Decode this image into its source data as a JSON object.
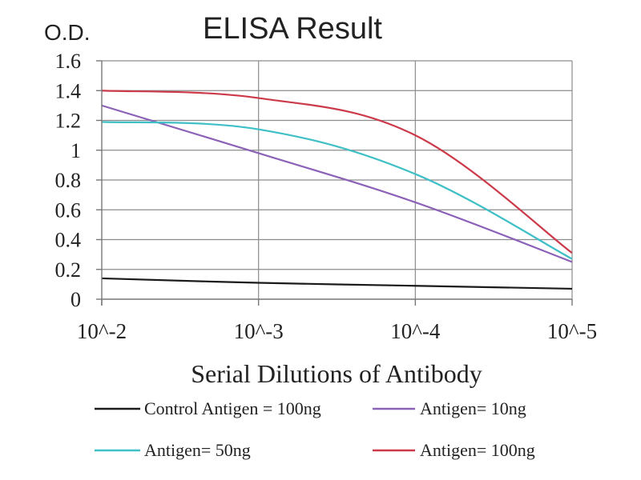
{
  "chart_data": {
    "type": "line",
    "title": "ELISA Result",
    "ylabel": "O.D.",
    "xlabel": "Serial Dilutions of Antibody",
    "categories": [
      "10^-2",
      "10^-3",
      "10^-4",
      "10^-5"
    ],
    "ylim": [
      0,
      1.6
    ],
    "y_ticks": [
      "0",
      "0.2",
      "0.4",
      "0.6",
      "0.8",
      "1",
      "1.2",
      "1.4",
      "1.6"
    ],
    "grid": true,
    "legend_position": "bottom",
    "series": [
      {
        "name": "Control Antigen = 100ng",
        "color": "#1a1a1a",
        "values": [
          0.14,
          0.11,
          0.09,
          0.07
        ]
      },
      {
        "name": "Antigen= 10ng",
        "color": "#8b62b8",
        "values": [
          1.3,
          0.98,
          0.65,
          0.25
        ]
      },
      {
        "name": "Antigen= 50ng",
        "color": "#3fbfc6",
        "values": [
          1.19,
          1.14,
          0.84,
          0.27
        ]
      },
      {
        "name": "Antigen= 100ng",
        "color": "#cc3a4a",
        "values": [
          1.4,
          1.35,
          1.1,
          0.31
        ]
      }
    ]
  }
}
